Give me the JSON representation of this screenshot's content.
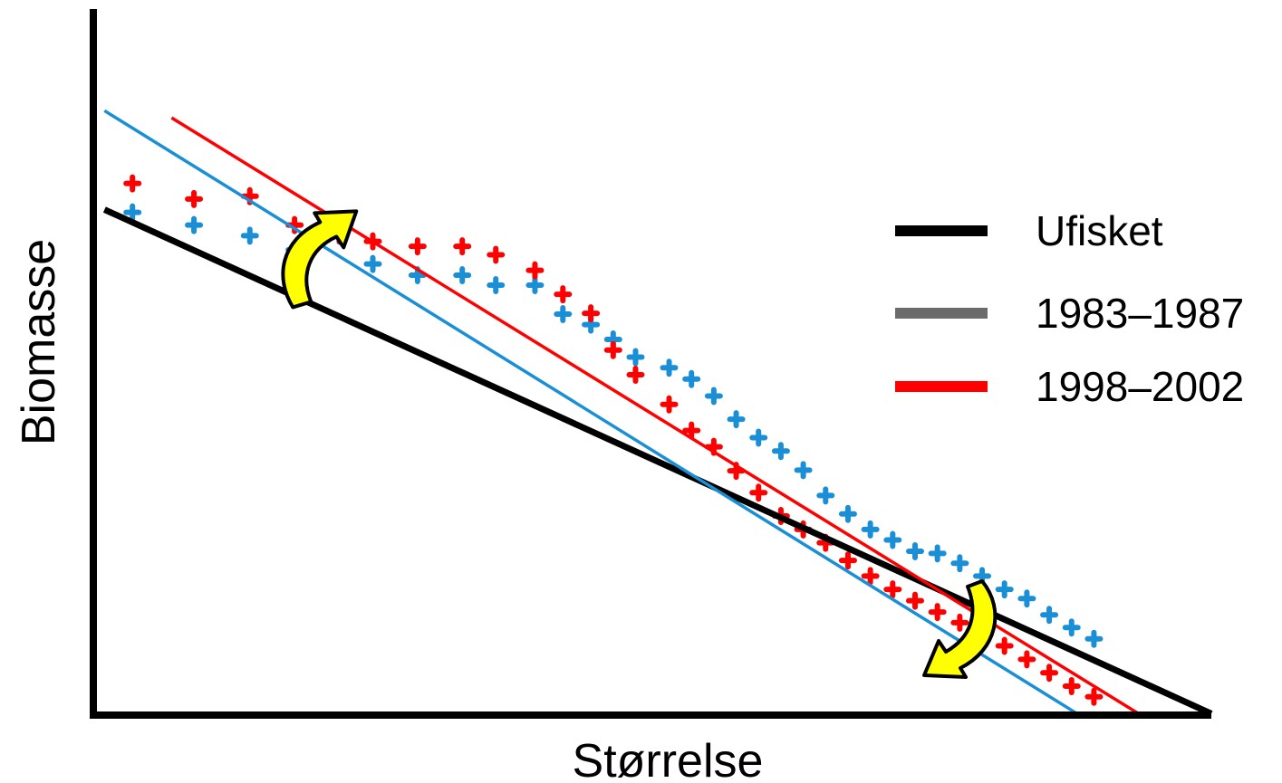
{
  "chart_data": {
    "type": "scatter",
    "title": "",
    "xlabel": "Størrelse",
    "ylabel": "Biomasse",
    "xlim": [
      0,
      100
    ],
    "ylim": [
      0,
      100
    ],
    "grid": false,
    "ticks": false,
    "legend_position": "right",
    "colors": {
      "axis": "#000000",
      "Ufisket": "#000000",
      "1983–1987": "#1a8fd6",
      "1983–1987_legend": "#6b6b6b",
      "1998–2002": "#ff0000",
      "arrow_fill": "#ffff00",
      "arrow_stroke": "#000000"
    },
    "legend": [
      {
        "label": "Ufisket",
        "color": "#000000"
      },
      {
        "label": "1983–1987",
        "color": "#6b6b6b"
      },
      {
        "label": "1998–2002",
        "color": "#ff0000"
      }
    ],
    "series": [
      {
        "name": "Ufisket",
        "kind": "line",
        "points": [
          [
            1,
            71.6
          ],
          [
            100,
            0.2
          ]
        ]
      },
      {
        "name": "1983–1987",
        "kind": "line+scatter",
        "line": [
          [
            1,
            85.6
          ],
          [
            88,
            0.2
          ]
        ],
        "points": [
          [
            3.5,
            71.2
          ],
          [
            9,
            69.4
          ],
          [
            14,
            67.9
          ],
          [
            18,
            65.9
          ],
          [
            22,
            67.9
          ],
          [
            25,
            63.9
          ],
          [
            29,
            62.3
          ],
          [
            33,
            62.3
          ],
          [
            36,
            60.9
          ],
          [
            39.5,
            60.9
          ],
          [
            42,
            56.8
          ],
          [
            44.5,
            55.3
          ],
          [
            46.5,
            53.2
          ],
          [
            48.5,
            50.7
          ],
          [
            51.5,
            49.2
          ],
          [
            53.5,
            47.6
          ],
          [
            55.5,
            45.2
          ],
          [
            57.5,
            41.9
          ],
          [
            59.5,
            39.3
          ],
          [
            61.5,
            37.4
          ],
          [
            63.5,
            34.7
          ],
          [
            65.5,
            31.1
          ],
          [
            67.5,
            28.5
          ],
          [
            69.5,
            26.3
          ],
          [
            71.5,
            24.8
          ],
          [
            73.5,
            23.2
          ],
          [
            75.5,
            22.9
          ],
          [
            77.5,
            21.5
          ],
          [
            79.5,
            19.7
          ],
          [
            81.5,
            17.8
          ],
          [
            83.5,
            16.5
          ],
          [
            85.5,
            14.2
          ],
          [
            87.5,
            12.4
          ],
          [
            89.5,
            10.8
          ]
        ]
      },
      {
        "name": "1998–2002",
        "kind": "line+scatter",
        "line": [
          [
            7,
            84.6
          ],
          [
            93.5,
            0.2
          ]
        ],
        "points": [
          [
            3.5,
            75.3
          ],
          [
            9,
            73.1
          ],
          [
            14,
            73.5
          ],
          [
            18,
            69.4
          ],
          [
            22,
            68.0
          ],
          [
            25,
            67.1
          ],
          [
            29,
            66.4
          ],
          [
            33,
            66.4
          ],
          [
            36,
            65.2
          ],
          [
            39.5,
            63.0
          ],
          [
            42,
            59.6
          ],
          [
            44.5,
            56.9
          ],
          [
            46.5,
            51.7
          ],
          [
            48.5,
            48.2
          ],
          [
            51.5,
            44.0
          ],
          [
            53.5,
            40.3
          ],
          [
            55.5,
            38.0
          ],
          [
            57.5,
            34.6
          ],
          [
            59.5,
            31.5
          ],
          [
            61.5,
            28.2
          ],
          [
            63.5,
            26.3
          ],
          [
            65.5,
            24.4
          ],
          [
            67.5,
            21.9
          ],
          [
            69.5,
            19.7
          ],
          [
            71.5,
            17.8
          ],
          [
            73.5,
            16.2
          ],
          [
            75.5,
            14.6
          ],
          [
            77.5,
            13.1
          ],
          [
            79.5,
            11.6
          ],
          [
            81.5,
            9.8
          ],
          [
            83.5,
            7.9
          ],
          [
            85.5,
            6.0
          ],
          [
            87.5,
            4.1
          ],
          [
            89.5,
            2.6
          ]
        ]
      }
    ],
    "annotations": [
      {
        "type": "curved-arrow",
        "direction": "up",
        "anchor": [
          18.5,
          67
        ]
      },
      {
        "type": "curved-arrow",
        "direction": "down",
        "anchor": [
          79.5,
          10
        ]
      }
    ]
  }
}
